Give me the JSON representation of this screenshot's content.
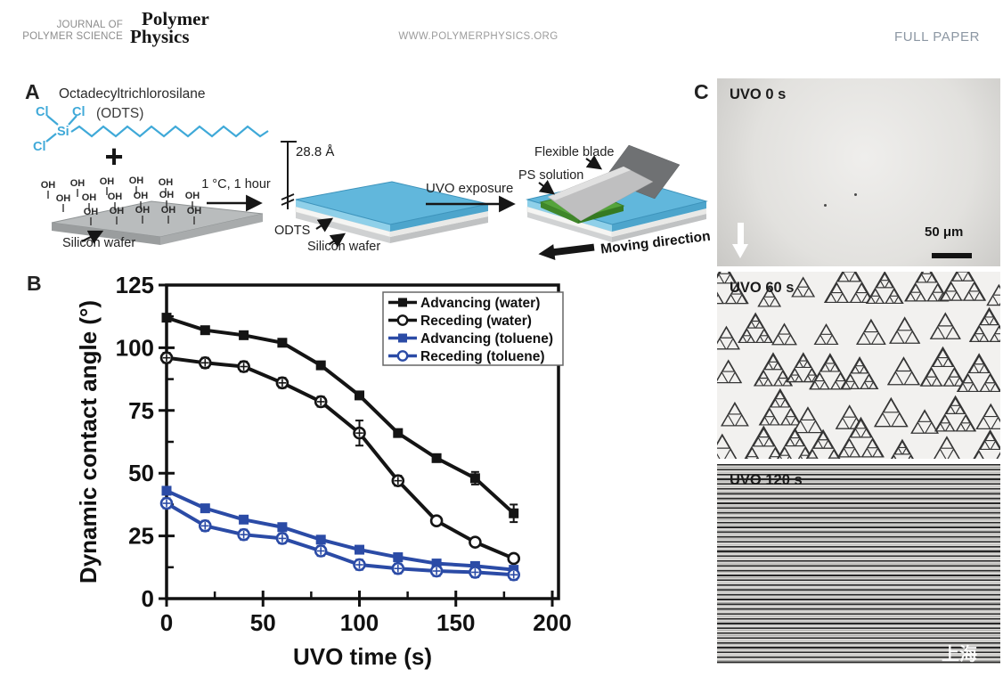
{
  "header": {
    "journal_line1": "JOURNAL OF",
    "journal_line2": "POLYMER SCIENCE",
    "logo_line1": "Polymer",
    "logo_line2": "Physics",
    "website": "WWW.POLYMERPHYSICS.ORG",
    "article_type": "FULL PAPER"
  },
  "panels": {
    "a_label": "A",
    "b_label": "B",
    "c_label": "C"
  },
  "panelA": {
    "molecule_name": "Octadecyltrichlorosilane",
    "molecule_abbr": "(ODTS)",
    "atom_cl": "Cl",
    "atom_si": "Si",
    "oh_group": "OH",
    "plus_sign": "+",
    "silicon_wafer_label": "Silicon wafer",
    "reaction_condition": "1 °C, 1 hour",
    "film_thickness": "28.8 Å",
    "odts_layer_label": "ODTS",
    "silicon_wafer_label_2": "Silicon wafer",
    "uvo_step_label": "UVO exposure",
    "flexible_blade_label": "Flexible blade",
    "ps_solution_label": "PS solution",
    "moving_direction_label": "Moving direction",
    "structure_color": "#3fa9d8",
    "odts_layer_color": "#61b7dc",
    "ps_green_color": "#55a33b"
  },
  "chart_data": {
    "type": "line",
    "title": "",
    "xlabel": "UVO time (s)",
    "ylabel": "Dynamic contact angle (°)",
    "xlim": [
      0,
      200
    ],
    "ylim": [
      0,
      125
    ],
    "xticks": [
      0,
      50,
      100,
      150,
      200
    ],
    "yticks": [
      0,
      25,
      50,
      75,
      100,
      125
    ],
    "grid": false,
    "legend_position": "top-right",
    "x": [
      0,
      20,
      40,
      60,
      80,
      100,
      120,
      140,
      160,
      180
    ],
    "series": [
      {
        "name": "Advancing (water)",
        "color": "#141414",
        "marker": "square-filled",
        "values": [
          112,
          107,
          105,
          102,
          93,
          81,
          66,
          56,
          48,
          34
        ],
        "errors": [
          0,
          0,
          0,
          0,
          0,
          0,
          0,
          0,
          2.5,
          3.5
        ]
      },
      {
        "name": "Receding (water)",
        "color": "#141414",
        "marker": "circle-open",
        "values": [
          96,
          94,
          92.5,
          86,
          78.5,
          66,
          47,
          31,
          22.5,
          16
        ],
        "errors": [
          2,
          2,
          2,
          2,
          2,
          5,
          2,
          0,
          0,
          0
        ]
      },
      {
        "name": "Advancing (toluene)",
        "color": "#2b4ba6",
        "marker": "square-filled",
        "values": [
          43,
          36,
          31.5,
          28.5,
          23.5,
          19.5,
          16.5,
          14,
          13,
          11.5
        ],
        "errors": [
          0,
          0,
          0,
          0,
          0,
          0,
          0,
          0,
          0,
          0
        ]
      },
      {
        "name": "Receding (toluene)",
        "color": "#2b4ba6",
        "marker": "circle-open",
        "values": [
          38,
          29,
          25.5,
          24,
          19,
          13.5,
          12,
          11,
          10.5,
          9.5
        ],
        "errors": [
          2,
          2,
          2,
          2,
          2,
          2,
          2,
          2,
          2,
          2
        ]
      }
    ]
  },
  "panelC": {
    "images": [
      {
        "label": "UVO 0 s",
        "scale_bar": "50 μm"
      },
      {
        "label": "UVO 60 s"
      },
      {
        "label": "UVO 120 s",
        "watermark": "上海"
      }
    ]
  }
}
